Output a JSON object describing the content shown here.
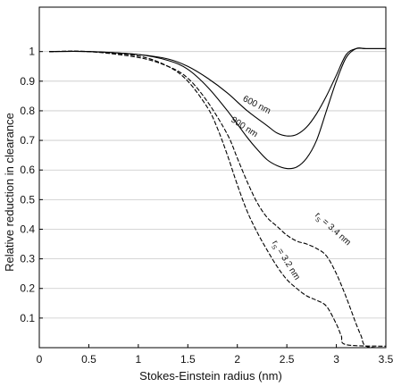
{
  "chart_data": {
    "type": "line",
    "title": "",
    "xlabel": "Stokes-Einstein radius (nm)",
    "ylabel": "Relative reduction in clearance",
    "xlim": [
      0,
      3.5
    ],
    "ylim": [
      0,
      1.15
    ],
    "xticks": [
      "0",
      "0.5",
      "1",
      "1.5",
      "2",
      "2.5",
      "3",
      "3.5"
    ],
    "yticks": [
      "0.1",
      "0.2",
      "0.3",
      "0.4",
      "0.5",
      "0.6",
      "0.7",
      "0.8",
      "0.9",
      "1"
    ],
    "grid": "horizontal",
    "legend": "none",
    "series": [
      {
        "name": "600 nm",
        "style": "solid",
        "x": [
          0.1,
          0.5,
          1.0,
          1.3,
          1.5,
          1.7,
          1.9,
          2.1,
          2.3,
          2.4,
          2.5,
          2.6,
          2.7,
          2.8,
          2.9,
          3.0,
          3.1,
          3.2,
          3.3,
          3.5
        ],
        "y": [
          1.0,
          1.0,
          0.99,
          0.975,
          0.95,
          0.91,
          0.86,
          0.8,
          0.75,
          0.725,
          0.715,
          0.72,
          0.745,
          0.79,
          0.85,
          0.92,
          0.99,
          1.01,
          1.01,
          1.01
        ]
      },
      {
        "name": "900 nm",
        "style": "solid",
        "x": [
          0.1,
          0.5,
          1.0,
          1.3,
          1.5,
          1.7,
          1.9,
          2.1,
          2.2,
          2.3,
          2.4,
          2.5,
          2.6,
          2.7,
          2.8,
          2.9,
          3.0,
          3.1,
          3.2,
          3.3,
          3.5
        ],
        "y": [
          1.0,
          1.0,
          0.99,
          0.97,
          0.94,
          0.88,
          0.8,
          0.71,
          0.67,
          0.635,
          0.615,
          0.605,
          0.61,
          0.64,
          0.7,
          0.8,
          0.9,
          0.98,
          1.01,
          1.01,
          1.01
        ]
      },
      {
        "name": "rs = 3.4 nm",
        "style": "dashed",
        "x": [
          0.1,
          0.5,
          1.0,
          1.3,
          1.5,
          1.7,
          1.9,
          2.0,
          2.1,
          2.2,
          2.3,
          2.4,
          2.5,
          2.6,
          2.7,
          2.8,
          2.9,
          3.0,
          3.1,
          3.2,
          3.25,
          3.3,
          3.5
        ],
        "y": [
          1.0,
          1.0,
          0.98,
          0.95,
          0.91,
          0.83,
          0.72,
          0.64,
          0.56,
          0.49,
          0.44,
          0.41,
          0.38,
          0.36,
          0.35,
          0.335,
          0.31,
          0.25,
          0.17,
          0.08,
          0.04,
          0.005,
          0.0
        ]
      },
      {
        "name": "rs = 3.2 nm",
        "style": "dashed",
        "x": [
          0.1,
          0.5,
          1.0,
          1.3,
          1.5,
          1.7,
          1.8,
          1.9,
          2.0,
          2.1,
          2.2,
          2.3,
          2.4,
          2.5,
          2.6,
          2.7,
          2.8,
          2.9,
          3.0,
          3.05,
          3.1,
          3.5
        ],
        "y": [
          1.0,
          1.0,
          0.985,
          0.95,
          0.9,
          0.81,
          0.74,
          0.65,
          0.55,
          0.46,
          0.39,
          0.33,
          0.275,
          0.23,
          0.2,
          0.175,
          0.16,
          0.14,
          0.08,
          0.04,
          0.01,
          0.005
        ]
      }
    ],
    "annotations": [
      {
        "text": "600 nm",
        "x": 2.05,
        "y": 0.835,
        "angle": 27
      },
      {
        "text": "900 nm",
        "x": 1.93,
        "y": 0.765,
        "angle": 33
      },
      {
        "text": "r",
        "sub": "S",
        "rest": " = 3.4 nm",
        "x": 2.78,
        "y": 0.445,
        "angle": 42
      },
      {
        "text": "r",
        "sub": "S",
        "rest": " = 3.2 nm",
        "x": 2.35,
        "y": 0.355,
        "angle": 58
      }
    ]
  }
}
